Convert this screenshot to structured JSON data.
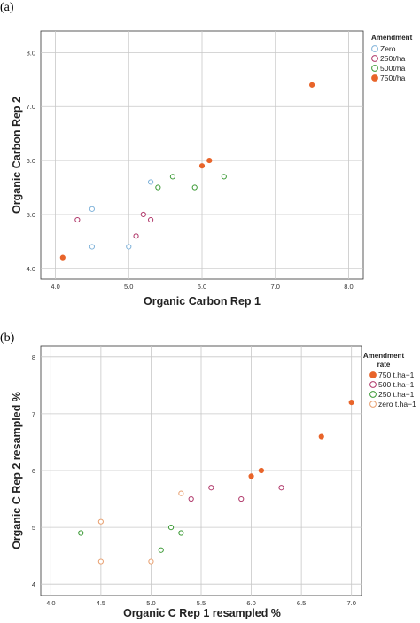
{
  "chart_data": [
    {
      "type": "scatter",
      "panel_label": "(a)",
      "xlabel": "Organic Carbon Rep 1",
      "ylabel": "Organic Carbon  Rep 2",
      "xlim": [
        3.8,
        8.2
      ],
      "ylim": [
        3.8,
        8.4
      ],
      "xticks": [
        "4.0",
        "5.0",
        "6.0",
        "7.0",
        "8.0"
      ],
      "yticks": [
        "4.0",
        "5.0",
        "6.0",
        "7.0",
        "8.0"
      ],
      "grid": true,
      "legend_title": "Amendment",
      "legend_position": "top-right",
      "series": [
        {
          "name": "Zero",
          "color": "#7fb2d9",
          "filled": false,
          "points": [
            [
              4.5,
              5.1
            ],
            [
              4.5,
              4.4
            ],
            [
              5.0,
              4.4
            ],
            [
              5.3,
              5.6
            ]
          ]
        },
        {
          "name": "250t/ha",
          "color": "#b0386a",
          "filled": false,
          "points": [
            [
              4.3,
              4.9
            ],
            [
              5.1,
              4.6
            ],
            [
              5.2,
              5.0
            ],
            [
              5.3,
              4.9
            ]
          ]
        },
        {
          "name": "500t/ha",
          "color": "#3c9a36",
          "filled": false,
          "points": [
            [
              5.4,
              5.5
            ],
            [
              5.6,
              5.7
            ],
            [
              5.9,
              5.5
            ],
            [
              6.3,
              5.7
            ]
          ]
        },
        {
          "name": "750t/ha",
          "color": "#e8642a",
          "filled": true,
          "points": [
            [
              4.1,
              4.2
            ],
            [
              6.0,
              5.9
            ],
            [
              6.1,
              6.0
            ],
            [
              7.5,
              7.4
            ]
          ]
        }
      ]
    },
    {
      "type": "scatter",
      "panel_label": "(b)",
      "xlabel": "Organic C Rep 1 resampled %",
      "ylabel": "Organic C Rep 2 resampled %",
      "xlim": [
        3.9,
        7.1
      ],
      "ylim": [
        3.8,
        8.2
      ],
      "xticks": [
        "4.0",
        "4.5",
        "5.0",
        "5.5",
        "6.0",
        "6.5",
        "7.0"
      ],
      "yticks": [
        "4",
        "5",
        "6",
        "7",
        "8"
      ],
      "grid": true,
      "legend_title": "Amendment\nrate",
      "legend_position": "top-right",
      "series": [
        {
          "name": "750 t.ha−1",
          "color": "#e8642a",
          "filled": true,
          "points": [
            [
              6.0,
              5.9
            ],
            [
              6.1,
              6.0
            ],
            [
              6.7,
              6.6
            ],
            [
              7.0,
              7.2
            ]
          ]
        },
        {
          "name": "500 t.ha−1",
          "color": "#b0386a",
          "filled": false,
          "points": [
            [
              5.4,
              5.5
            ],
            [
              5.6,
              5.7
            ],
            [
              5.9,
              5.5
            ],
            [
              6.3,
              5.7
            ]
          ]
        },
        {
          "name": "250 t.ha−1",
          "color": "#3c9a36",
          "filled": false,
          "points": [
            [
              4.3,
              4.9
            ],
            [
              5.1,
              4.6
            ],
            [
              5.2,
              5.0
            ],
            [
              5.3,
              4.9
            ]
          ]
        },
        {
          "name": "zero t.ha−1",
          "color": "#e8a070",
          "filled": false,
          "points": [
            [
              4.5,
              5.1
            ],
            [
              4.5,
              4.4
            ],
            [
              5.0,
              4.4
            ],
            [
              5.3,
              5.6
            ]
          ]
        }
      ]
    }
  ]
}
